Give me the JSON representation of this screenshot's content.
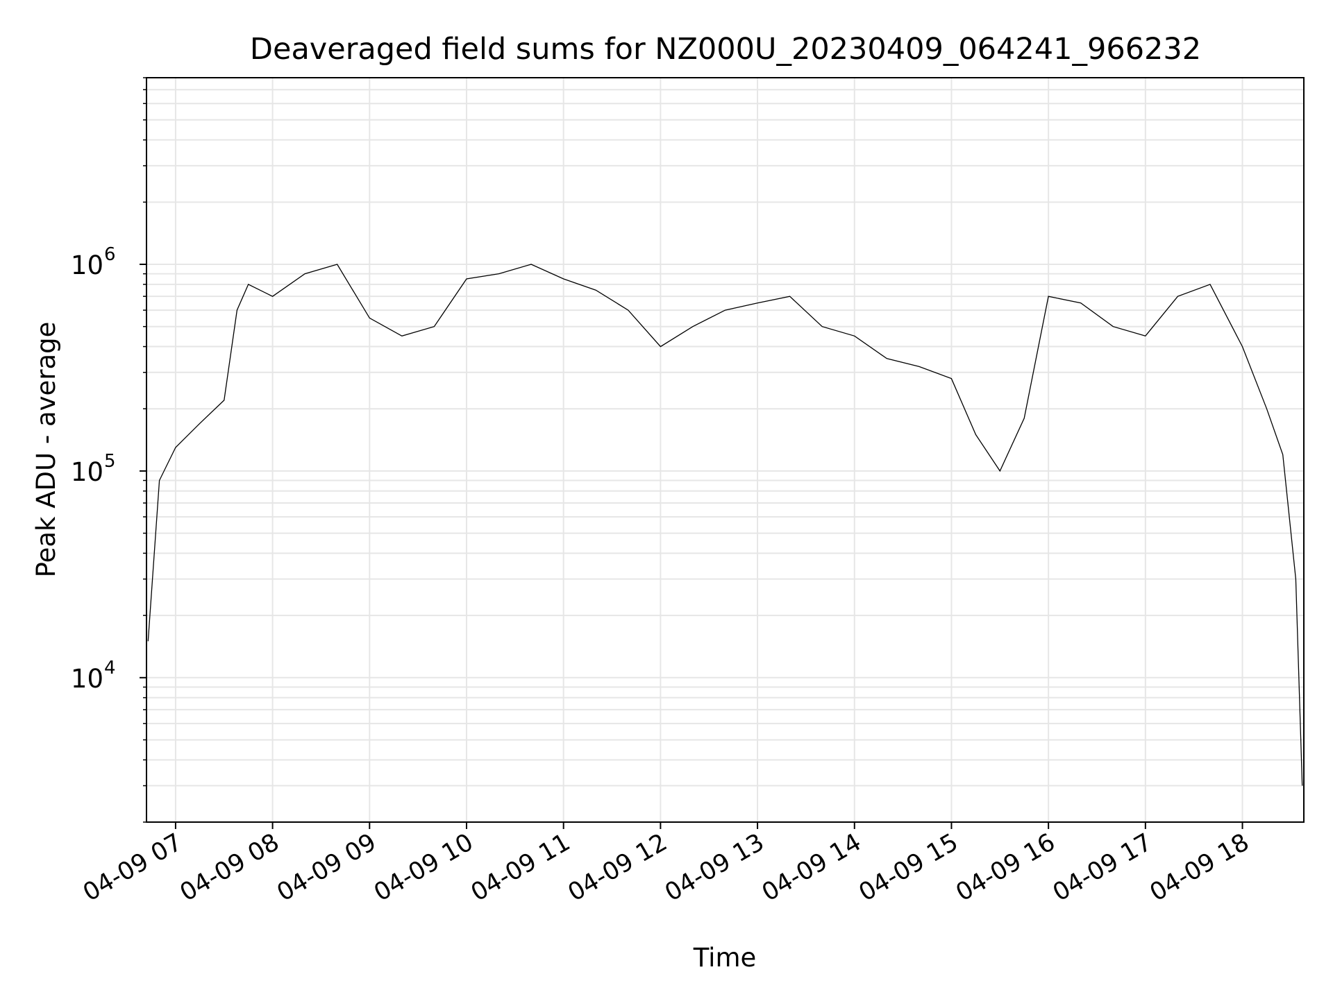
{
  "chart_data": {
    "type": "line",
    "title": "Deaveraged field sums for NZ000U_20230409_064241_966232",
    "xlabel": "Time",
    "ylabel": "Peak ADU - average",
    "yscale": "log",
    "grid": true,
    "line_color": "#000000",
    "grid_color": "#e6e6e6",
    "xlim": [
      "04-09 06:42",
      "04-09 18:38"
    ],
    "ylim": [
      2000,
      8000000
    ],
    "x_ticks": [
      "04-09 07",
      "04-09 08",
      "04-09 09",
      "04-09 10",
      "04-09 11",
      "04-09 12",
      "04-09 13",
      "04-09 14",
      "04-09 15",
      "04-09 16",
      "04-09 17",
      "04-09 18"
    ],
    "y_ticks": [
      {
        "value": 10000,
        "base": "10",
        "exp": "4"
      },
      {
        "value": 100000,
        "base": "10",
        "exp": "5"
      },
      {
        "value": 1000000,
        "base": "10",
        "exp": "6"
      }
    ],
    "series": [
      {
        "x": [
          "04-09 06:43",
          "04-09 06:50",
          "04-09 07:00",
          "04-09 07:15",
          "04-09 07:30",
          "04-09 07:38",
          "04-09 07:45",
          "04-09 08:00",
          "04-09 08:20",
          "04-09 08:40",
          "04-09 09:00",
          "04-09 09:20",
          "04-09 09:40",
          "04-09 10:00",
          "04-09 10:20",
          "04-09 10:40",
          "04-09 11:00",
          "04-09 11:20",
          "04-09 11:40",
          "04-09 12:00",
          "04-09 12:20",
          "04-09 12:40",
          "04-09 13:00",
          "04-09 13:20",
          "04-09 13:40",
          "04-09 14:00",
          "04-09 14:20",
          "04-09 14:40",
          "04-09 15:00",
          "04-09 15:15",
          "04-09 15:30",
          "04-09 15:45",
          "04-09 16:00",
          "04-09 16:20",
          "04-09 16:40",
          "04-09 17:00",
          "04-09 17:20",
          "04-09 17:40",
          "04-09 18:00",
          "04-09 18:15",
          "04-09 18:25",
          "04-09 18:33",
          "04-09 18:37"
        ],
        "y": [
          15000,
          90000,
          130000,
          170000,
          220000,
          600000,
          800000,
          700000,
          900000,
          1000000,
          550000,
          450000,
          500000,
          850000,
          900000,
          1000000,
          850000,
          750000,
          600000,
          400000,
          500000,
          600000,
          650000,
          700000,
          500000,
          450000,
          350000,
          320000,
          280000,
          150000,
          100000,
          180000,
          700000,
          650000,
          500000,
          450000,
          700000,
          800000,
          400000,
          200000,
          120000,
          30000,
          3000
        ]
      }
    ]
  }
}
